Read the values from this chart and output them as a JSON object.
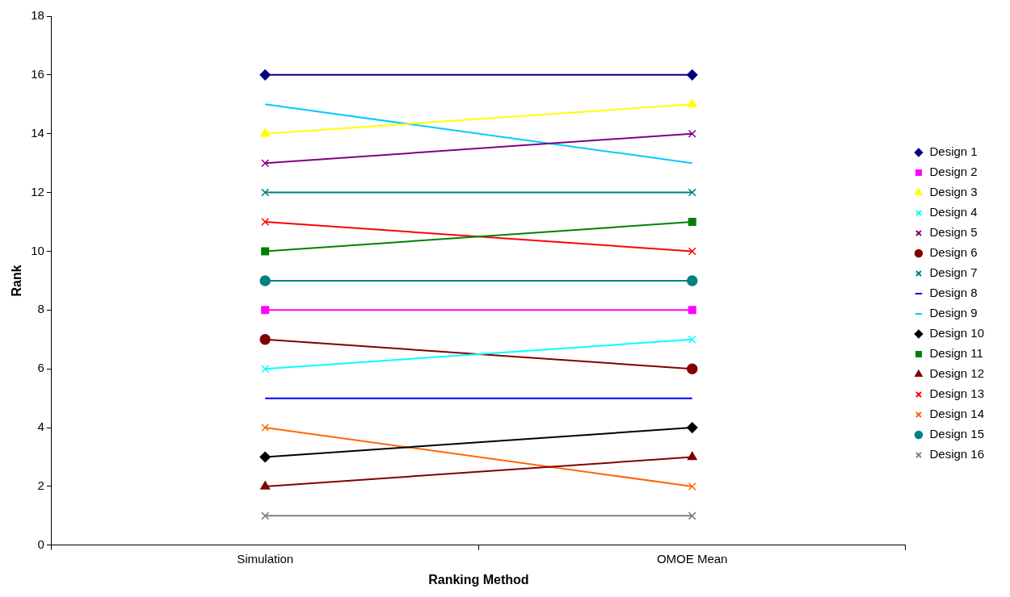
{
  "chart_data": {
    "type": "line",
    "xlabel": "Ranking Method",
    "ylabel": "Rank",
    "categories": [
      "Simulation",
      "OMOE Mean"
    ],
    "ylim": [
      0,
      18
    ],
    "yticks": [
      0,
      2,
      4,
      6,
      8,
      10,
      12,
      14,
      16,
      18
    ],
    "grid": false,
    "legend": "right",
    "series": [
      {
        "name": "Design 1",
        "color": "#000080",
        "marker": "diamond",
        "values": [
          16,
          16
        ]
      },
      {
        "name": "Design 2",
        "color": "#ff00ff",
        "marker": "square",
        "values": [
          8,
          8
        ]
      },
      {
        "name": "Design 3",
        "color": "#ffff00",
        "marker": "triangle",
        "values": [
          14,
          15
        ]
      },
      {
        "name": "Design 4",
        "color": "#00ffff",
        "marker": "cross",
        "values": [
          6,
          7
        ]
      },
      {
        "name": "Design 5",
        "color": "#800080",
        "marker": "cross",
        "values": [
          13,
          14
        ]
      },
      {
        "name": "Design 6",
        "color": "#800000",
        "marker": "circle",
        "values": [
          7,
          6
        ]
      },
      {
        "name": "Design 7",
        "color": "#008080",
        "marker": "cross",
        "values": [
          12,
          12
        ]
      },
      {
        "name": "Design 8",
        "color": "#0000ff",
        "marker": "none",
        "values": [
          5,
          5
        ]
      },
      {
        "name": "Design 9",
        "color": "#00ccff",
        "marker": "none",
        "values": [
          15,
          13
        ]
      },
      {
        "name": "Design 10",
        "color": "#000000",
        "marker": "diamond",
        "values": [
          3,
          4
        ]
      },
      {
        "name": "Design 11",
        "color": "#008000",
        "marker": "square",
        "values": [
          10,
          11
        ]
      },
      {
        "name": "Design 12",
        "color": "#800000",
        "marker": "triangle",
        "values": [
          2,
          3
        ]
      },
      {
        "name": "Design 13",
        "color": "#ff0000",
        "marker": "cross",
        "values": [
          11,
          10
        ]
      },
      {
        "name": "Design 14",
        "color": "#ff6600",
        "marker": "cross",
        "values": [
          4,
          2
        ]
      },
      {
        "name": "Design 15",
        "color": "#008080",
        "marker": "circle",
        "values": [
          9,
          9
        ]
      },
      {
        "name": "Design 16",
        "color": "#808080",
        "marker": "cross",
        "values": [
          1,
          1
        ]
      }
    ]
  }
}
